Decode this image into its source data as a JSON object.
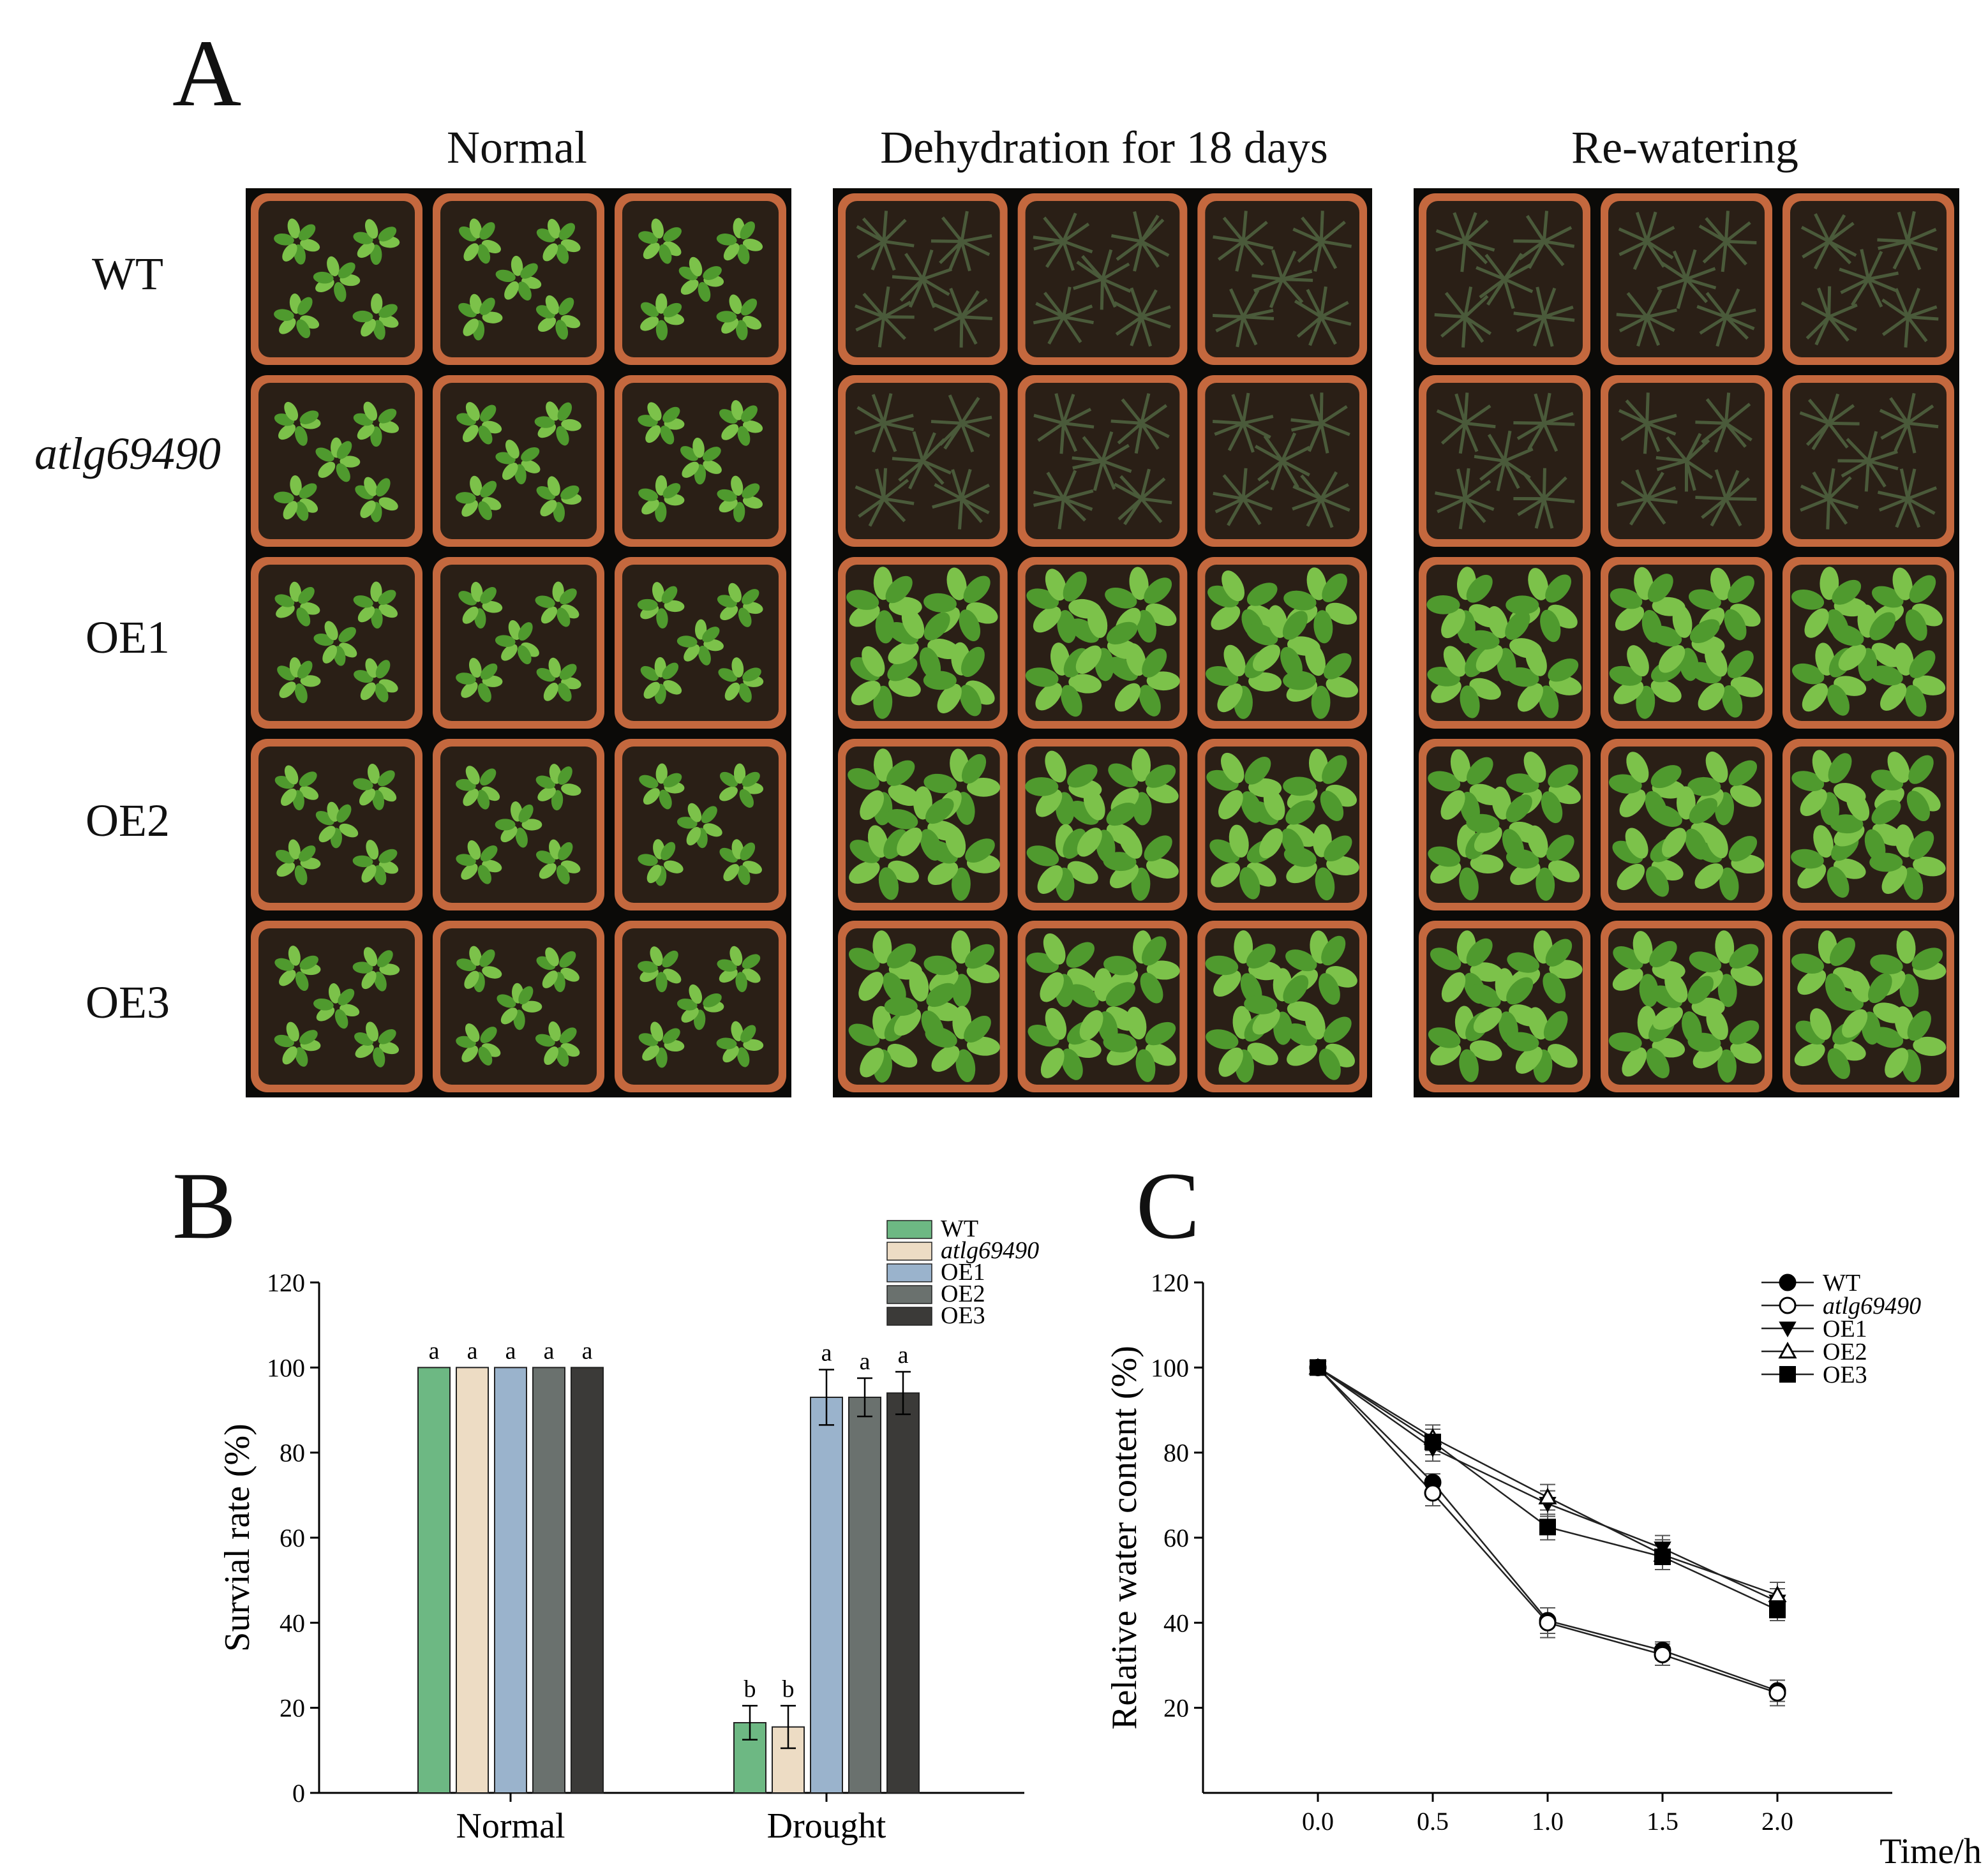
{
  "panels": {
    "a": {
      "letter": "A",
      "conditions": [
        "Normal",
        "Dehydration for 18 days",
        "Re-watering"
      ],
      "genotypes": [
        "WT",
        "atlg69490",
        "OE1",
        "OE2",
        "OE3"
      ],
      "italic_genotype": "atlg69490"
    },
    "b": {
      "letter": "B"
    },
    "c": {
      "letter": "C"
    }
  },
  "colors": {
    "photo_bg": "#0b0a08",
    "pot_rim": "#c4683e",
    "soil": "#2a1f16",
    "plant_healthy": "#4f9a2e",
    "plant_light": "#7cc24a",
    "plant_wilted": "#4a5a3a"
  },
  "chart_data": [
    {
      "type": "bar",
      "title": "",
      "xlabel": "",
      "ylabel": "Survial rate  (%)",
      "categories": [
        "Normal",
        "Drought"
      ],
      "ylim": [
        0,
        120
      ],
      "yticks": [
        0,
        20,
        40,
        60,
        80,
        100,
        120
      ],
      "series": [
        {
          "name": "WT",
          "color": "#6db883",
          "values": [
            100,
            16.5
          ],
          "errors": [
            0,
            4
          ],
          "letters": [
            "a",
            "b"
          ]
        },
        {
          "name": "atlg69490",
          "color": "#eddcc4",
          "values": [
            100,
            15.5
          ],
          "errors": [
            0,
            5
          ],
          "letters": [
            "a",
            "b"
          ]
        },
        {
          "name": "OE1",
          "color": "#9ab3cc",
          "values": [
            100,
            93
          ],
          "errors": [
            0,
            6.5
          ],
          "letters": [
            "a",
            "a"
          ]
        },
        {
          "name": "OE2",
          "color": "#6a716e",
          "values": [
            100,
            93
          ],
          "errors": [
            0,
            4.5
          ],
          "letters": [
            "a",
            "a"
          ]
        },
        {
          "name": "OE3",
          "color": "#3b3a38",
          "values": [
            100,
            94
          ],
          "errors": [
            0,
            5
          ],
          "letters": [
            "a",
            "a"
          ]
        }
      ],
      "legend_position": "top-right"
    },
    {
      "type": "line",
      "title": "",
      "xlabel": "Time/h",
      "ylabel": "Relative water content    (%)",
      "x": [
        0.0,
        0.5,
        1.0,
        1.5,
        2.0
      ],
      "xtick_labels": [
        "0.0",
        "0.5",
        "1.0",
        "1.5",
        "2.0"
      ],
      "xlim": [
        -0.5,
        2.5
      ],
      "ylim": [
        0,
        120
      ],
      "yticks": [
        20,
        40,
        60,
        80,
        100,
        120
      ],
      "series": [
        {
          "name": "WT",
          "marker": "circle-filled",
          "values": [
            100,
            73,
            40.5,
            33.5,
            24
          ],
          "errors": [
            0,
            2,
            3,
            2,
            2.5
          ]
        },
        {
          "name": "atlg69490",
          "marker": "circle-open",
          "values": [
            100,
            70.5,
            40,
            32.5,
            23.5
          ],
          "errors": [
            0,
            3,
            3.5,
            2.5,
            3
          ]
        },
        {
          "name": "OE1",
          "marker": "triangle-down-filled",
          "values": [
            100,
            81,
            68,
            57.5,
            45
          ],
          "errors": [
            0,
            3,
            3,
            3,
            3
          ]
        },
        {
          "name": "OE2",
          "marker": "triangle-up-open",
          "values": [
            100,
            83.5,
            69.5,
            56,
            46.5
          ],
          "errors": [
            0,
            3,
            3,
            3.5,
            3
          ]
        },
        {
          "name": "OE3",
          "marker": "square-filled",
          "values": [
            100,
            82.5,
            62.5,
            55.5,
            43
          ],
          "errors": [
            0,
            3,
            3,
            3,
            2.5
          ]
        }
      ],
      "legend_position": "top-right"
    }
  ]
}
